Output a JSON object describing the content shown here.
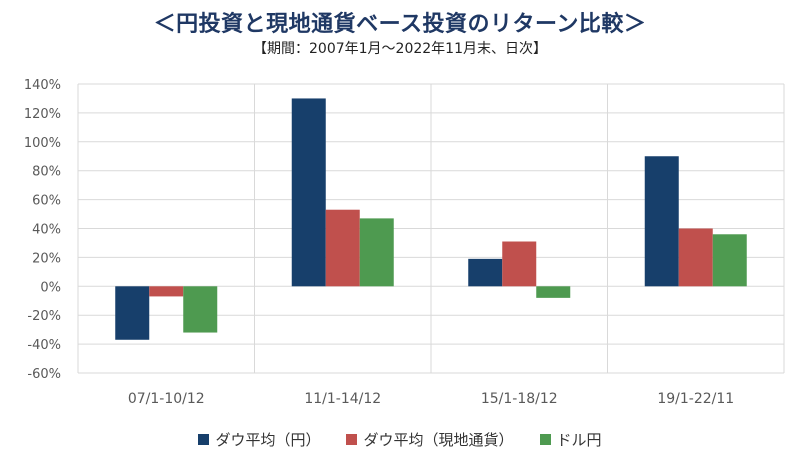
{
  "header": {
    "title": "＜円投資と現地通貨ベース投資のリターン比較＞",
    "subtitle": "【期間：2007年1月～2022年11月末、日次】"
  },
  "chart_data": {
    "type": "bar",
    "categories": [
      "07/1-10/12",
      "11/1-14/12",
      "15/1-18/12",
      "19/1-22/11"
    ],
    "series": [
      {
        "name": "ダウ平均（円）",
        "color": "#173f6b",
        "values": [
          -37,
          130,
          19,
          90
        ]
      },
      {
        "name": "ダウ平均（現地通貨）",
        "color": "#c0504d",
        "values": [
          -7,
          53,
          31,
          40
        ]
      },
      {
        "name": "ドル円",
        "color": "#4e9a50",
        "values": [
          -32,
          47,
          -8,
          36
        ]
      }
    ],
    "ylim": [
      -60,
      140
    ],
    "ytick_step": 20,
    "ytick_labels": [
      "140%",
      "120%",
      "100%",
      "80%",
      "60%",
      "40%",
      "20%",
      "0%",
      "-20%",
      "-40%",
      "-60%"
    ],
    "grid": true,
    "legend": "bottom"
  }
}
